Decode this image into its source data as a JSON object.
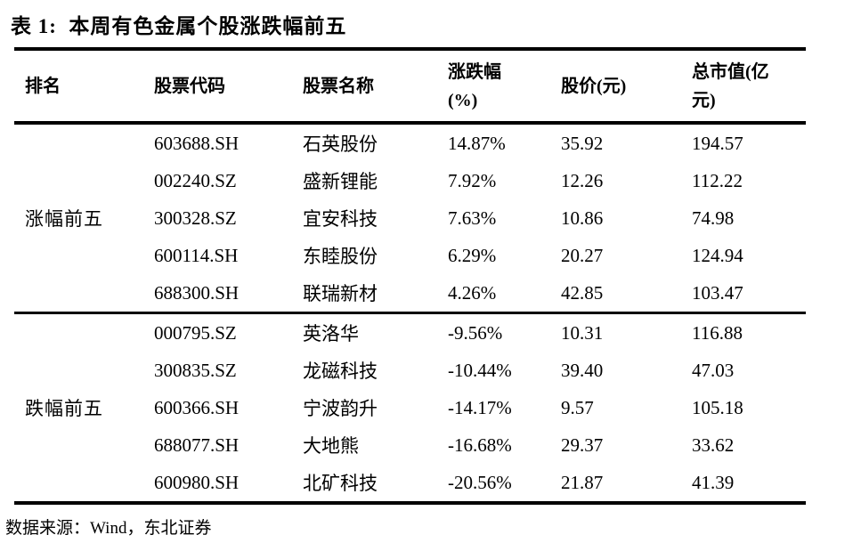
{
  "title": "表 1:  本周有色金属个股涨跌幅前五",
  "colors": {
    "text": "#000000",
    "rules": "#000000",
    "background": "#ffffff"
  },
  "table": {
    "headers": [
      {
        "label": "排名",
        "key": "rank"
      },
      {
        "label": "股票代码",
        "key": "code"
      },
      {
        "label": "股票名称",
        "key": "name"
      },
      {
        "label": "涨跌幅\n(%)",
        "key": "change_pct"
      },
      {
        "label": "股价(元)",
        "key": "price"
      },
      {
        "label": "总市值(亿\n元)",
        "key": "market_cap"
      }
    ],
    "groups": [
      {
        "label": "涨幅前五",
        "rows": [
          {
            "code": "603688.SH",
            "name": "石英股份",
            "change_pct": "14.87%",
            "price": "35.92",
            "market_cap": "194.57"
          },
          {
            "code": "002240.SZ",
            "name": "盛新锂能",
            "change_pct": "7.92%",
            "price": "12.26",
            "market_cap": "112.22"
          },
          {
            "code": "300328.SZ",
            "name": "宜安科技",
            "change_pct": "7.63%",
            "price": "10.86",
            "market_cap": "74.98"
          },
          {
            "code": "600114.SH",
            "name": "东睦股份",
            "change_pct": "6.29%",
            "price": "20.27",
            "market_cap": "124.94"
          },
          {
            "code": "688300.SH",
            "name": "联瑞新材",
            "change_pct": "4.26%",
            "price": "42.85",
            "market_cap": "103.47"
          }
        ]
      },
      {
        "label": "跌幅前五",
        "rows": [
          {
            "code": "000795.SZ",
            "name": "英洛华",
            "change_pct": "-9.56%",
            "price": "10.31",
            "market_cap": "116.88"
          },
          {
            "code": "300835.SZ",
            "name": "龙磁科技",
            "change_pct": "-10.44%",
            "price": "39.40",
            "market_cap": "47.03"
          },
          {
            "code": "600366.SH",
            "name": "宁波韵升",
            "change_pct": "-14.17%",
            "price": "9.57",
            "market_cap": "105.18"
          },
          {
            "code": "688077.SH",
            "name": "大地熊",
            "change_pct": "-16.68%",
            "price": "29.37",
            "market_cap": "33.62"
          },
          {
            "code": "600980.SH",
            "name": "北矿科技",
            "change_pct": "-20.56%",
            "price": "21.87",
            "market_cap": "41.39"
          }
        ]
      }
    ]
  },
  "footer": {
    "text": "数据来源：Wind，东北证券"
  }
}
